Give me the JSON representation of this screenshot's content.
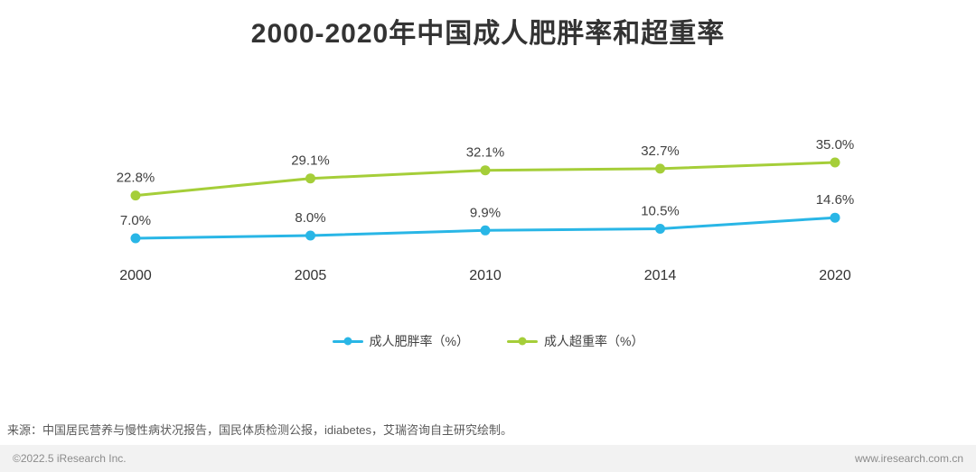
{
  "title": "2000-2020年中国成人肥胖率和超重率",
  "chart_data": {
    "type": "line",
    "categories": [
      "2000",
      "2005",
      "2010",
      "2014",
      "2020"
    ],
    "series": [
      {
        "name": "成人肥胖率（%）",
        "color": "#29b6e6",
        "values": [
          7.0,
          8.0,
          9.9,
          10.5,
          14.6
        ],
        "labels": [
          "7.0%",
          "8.0%",
          "9.9%",
          "10.5%",
          "14.6%"
        ]
      },
      {
        "name": "成人超重率（%）",
        "color": "#a5ce39",
        "values": [
          22.8,
          29.1,
          32.1,
          32.7,
          35.0
        ],
        "labels": [
          "22.8%",
          "29.1%",
          "32.1%",
          "32.7%",
          "35.0%"
        ]
      }
    ],
    "title": "2000-2020年中国成人肥胖率和超重率",
    "xlabel": "",
    "ylabel": "",
    "ylim": [
      0,
      40
    ],
    "grid": false,
    "legend_position": "bottom"
  },
  "source": "来源：中国居民营养与慢性病状况报告，国民体质检测公报，idiabetes，艾瑞咨询自主研究绘制。",
  "footer": {
    "copyright": "©2022.5 iResearch Inc.",
    "website": "www.iresearch.com.cn"
  },
  "style": {
    "label_color": "#404040",
    "axis_label_color": "#333333"
  }
}
